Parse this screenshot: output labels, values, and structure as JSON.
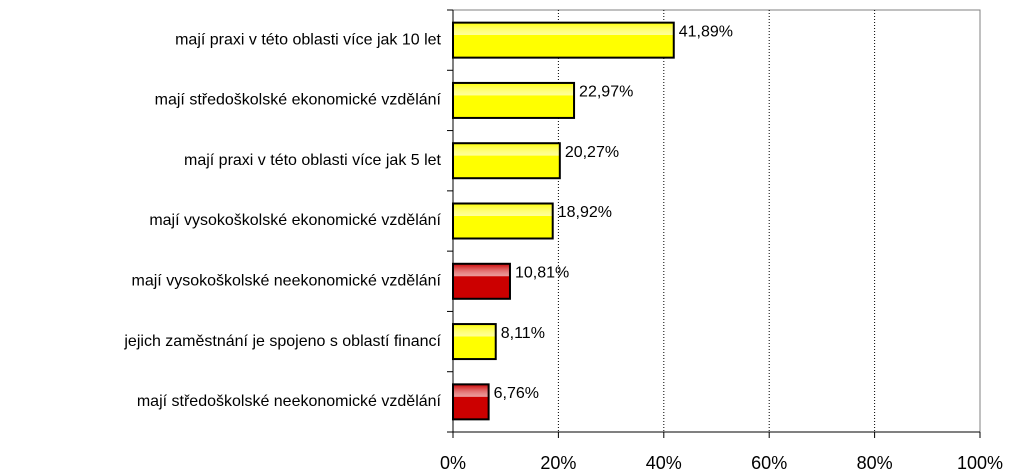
{
  "chart_data": {
    "type": "bar",
    "orientation": "horizontal",
    "categories": [
      "mají praxi v této oblasti více jak 10 let",
      "mají středoškolské ekonomické vzdělání",
      "mají praxi v této oblasti více jak 5 let",
      "mají vysokoškolské ekonomické vzdělání",
      "mají vysokoškolské neekonomické vzdělání",
      "jejich zaměstnání je spojeno s oblastí financí",
      "mají středoškolské neekonomické vzdělání"
    ],
    "values": [
      41.89,
      22.97,
      20.27,
      18.92,
      10.81,
      8.11,
      6.76
    ],
    "value_labels": [
      "41,89%",
      "22,97%",
      "20,27%",
      "18,92%",
      "10,81%",
      "8,11%",
      "6,76%"
    ],
    "colors": [
      "#ffff00",
      "#ffff00",
      "#ffff00",
      "#ffff00",
      "#cc0000",
      "#ffff00",
      "#cc0000"
    ],
    "xlim": [
      0,
      100
    ],
    "xticks": [
      {
        "value": 0,
        "label": "0%"
      },
      {
        "value": 20,
        "label": "20%"
      },
      {
        "value": 40,
        "label": "40%"
      },
      {
        "value": 60,
        "label": "60%"
      },
      {
        "value": 80,
        "label": "80%"
      },
      {
        "value": 100,
        "label": "100%"
      }
    ],
    "grid": true
  }
}
